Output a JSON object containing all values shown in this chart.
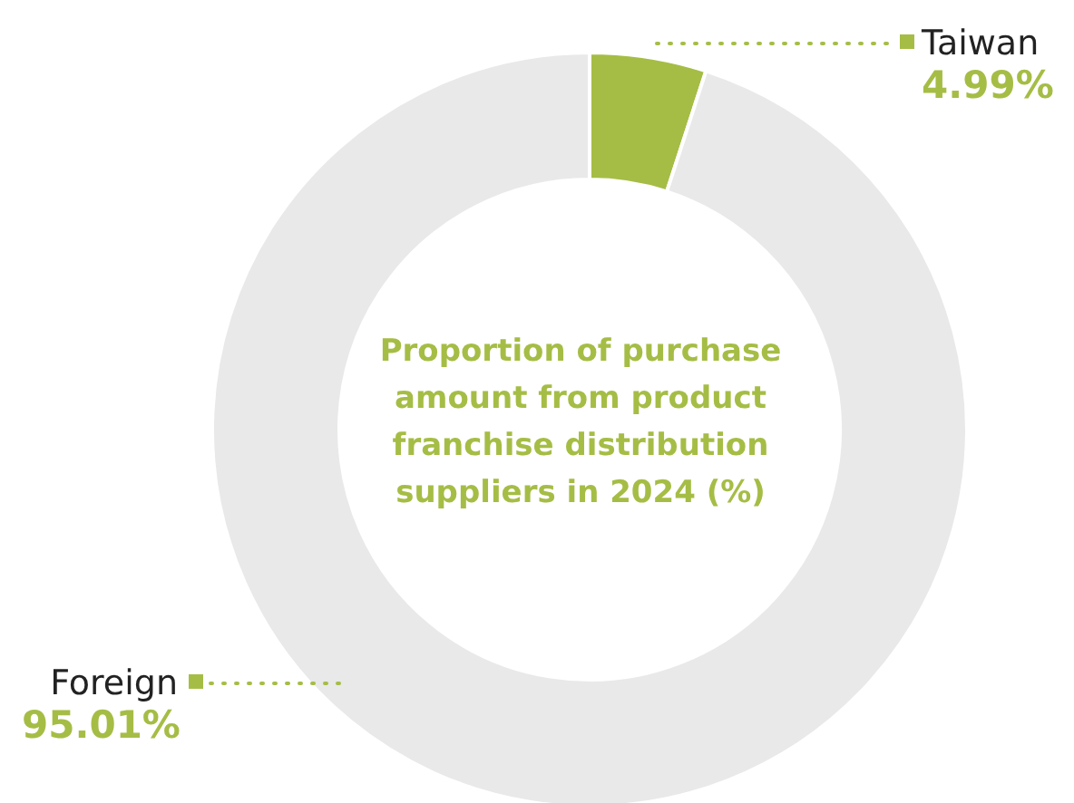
{
  "chart_data": {
    "type": "donut",
    "title": "Proportion of purchase amount from product franchise distribution suppliers in 2024 (%)",
    "categories": [
      "Taiwan",
      "Foreign"
    ],
    "values": [
      4.99,
      95.01
    ],
    "colors": [
      "#a5bd45",
      "#e8e9e8"
    ],
    "value_labels": [
      "4.99%",
      "95.01%"
    ]
  }
}
